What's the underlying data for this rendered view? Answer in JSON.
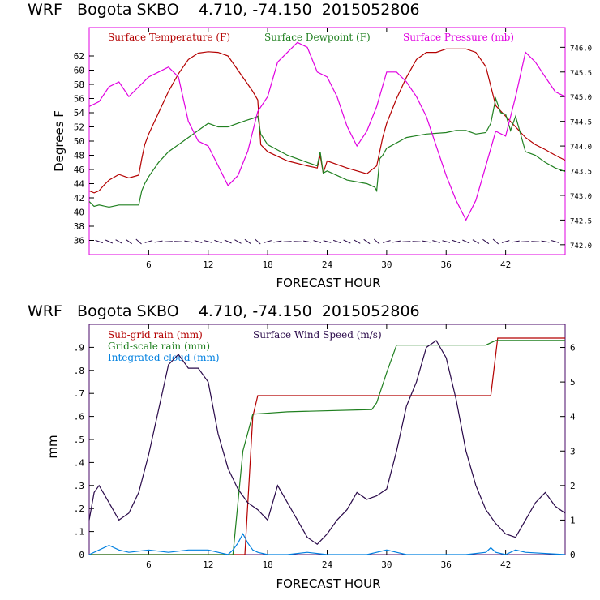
{
  "chart_data": [
    {
      "type": "line",
      "title": "WRF   Bogota SKBO    4.710, -74.150  2015052806",
      "xlabel": "FORECAST HOUR",
      "ylabel": "Degrees F",
      "xlim": [
        0,
        48
      ],
      "ylim": [
        34,
        66
      ],
      "y2lim": [
        741.8,
        746.4
      ],
      "x_ticks": [
        6,
        12,
        18,
        24,
        30,
        36,
        42
      ],
      "y_ticks": [
        36,
        38,
        40,
        42,
        44,
        46,
        48,
        50,
        52,
        54,
        56,
        58,
        60,
        62
      ],
      "y2_ticks": [
        "742.0",
        "742.5",
        "743.0",
        "743.5",
        "744.0",
        "744.5",
        "745.0",
        "745.5",
        "746.0"
      ],
      "y2_tick_values": [
        742.0,
        742.5,
        743.0,
        743.5,
        744.0,
        744.5,
        745.0,
        745.5,
        746.0
      ],
      "legend": [
        "Surface Temperature (F)",
        "Surface Dewpoint (F)",
        "Surface Pressure (mb)"
      ],
      "colors": {
        "temperature": "#b40000",
        "dewpoint": "#208020",
        "pressure": "#e000e0",
        "barbs": "#2a0a4a",
        "frame": "#e000e0"
      },
      "series": [
        {
          "name": "Surface Temperature (F)",
          "axis": "left",
          "x": [
            0,
            0.5,
            1,
            1.5,
            2,
            3,
            4,
            5,
            5.3,
            5.6,
            6,
            7,
            8,
            9,
            10,
            11,
            12,
            13,
            14,
            15,
            16,
            16.5,
            17,
            17.3,
            18,
            20,
            22,
            23,
            23.3,
            23.6,
            24,
            26,
            28,
            29,
            29.3,
            29.6,
            30,
            31,
            32,
            33,
            34,
            35,
            36,
            37,
            38,
            39,
            40,
            41,
            42,
            43,
            44,
            45,
            46,
            47,
            48
          ],
          "y": [
            43,
            42.7,
            43,
            43.8,
            44.5,
            45.3,
            44.8,
            45.2,
            47.5,
            49.5,
            51,
            54,
            57,
            59.5,
            61.5,
            62.4,
            62.6,
            62.5,
            62,
            60,
            58,
            57,
            55.8,
            49.5,
            48.5,
            47.2,
            46.5,
            46.2,
            48,
            45.5,
            47.2,
            46.2,
            45.4,
            46.5,
            48.5,
            50.5,
            52.5,
            56,
            59,
            61.5,
            62.5,
            62.5,
            63,
            63,
            63,
            62.5,
            60.5,
            55,
            53.5,
            52,
            50.5,
            49.5,
            48.8,
            48,
            47.3
          ]
        },
        {
          "name": "Surface Dewpoint (F)",
          "axis": "left",
          "x": [
            0,
            0.5,
            1,
            2,
            3,
            4,
            5,
            5.3,
            5.6,
            6,
            7,
            8,
            9,
            10,
            11,
            12,
            13,
            14,
            15,
            16,
            16.5,
            17,
            17.3,
            18,
            20,
            22,
            23,
            23.3,
            23.6,
            24,
            26,
            28,
            28.8,
            29,
            29.3,
            29.6,
            30,
            32,
            34,
            36,
            37,
            38,
            39,
            40,
            40.5,
            41,
            41.5,
            42,
            42.5,
            43,
            44,
            45,
            46,
            47,
            48
          ],
          "y": [
            41.5,
            40.8,
            41,
            40.7,
            41,
            41,
            41,
            43,
            44,
            45,
            47,
            48.5,
            49.5,
            50.5,
            51.5,
            52.5,
            52,
            52,
            52.5,
            53,
            53.2,
            53.5,
            51,
            49.5,
            48,
            47,
            46.5,
            48.5,
            45.5,
            45.8,
            44.5,
            44,
            43.5,
            43,
            47.5,
            48,
            49,
            50.5,
            51,
            51.2,
            51.5,
            51.5,
            51,
            51.2,
            52.5,
            56,
            54,
            53.8,
            51.5,
            53.5,
            48.5,
            48,
            47,
            46.2,
            45.7
          ]
        },
        {
          "name": "Surface Pressure (mb)",
          "axis": "right",
          "x": [
            0,
            1,
            2,
            3,
            4,
            5,
            6,
            7,
            8,
            9,
            10,
            11,
            12,
            13,
            14,
            15,
            16,
            17,
            18,
            19,
            20,
            21,
            22,
            23,
            24,
            25,
            26,
            27,
            28,
            29,
            30,
            31,
            32,
            33,
            34,
            35,
            36,
            37,
            38,
            39,
            40,
            41,
            42,
            43,
            44,
            45,
            46,
            47,
            48
          ],
          "y": [
            744.8,
            744.9,
            745.2,
            745.3,
            745.0,
            745.2,
            745.4,
            745.5,
            745.6,
            745.4,
            744.5,
            744.1,
            744.0,
            743.6,
            743.2,
            743.4,
            743.9,
            744.7,
            745.0,
            745.7,
            745.9,
            746.1,
            746.0,
            745.5,
            745.4,
            745.0,
            744.4,
            744.0,
            744.3,
            744.8,
            745.5,
            745.5,
            745.3,
            745.0,
            744.6,
            744.0,
            743.4,
            742.9,
            742.5,
            742.9,
            743.6,
            744.3,
            744.2,
            745.0,
            745.9,
            745.7,
            745.4,
            745.1,
            745.0
          ]
        }
      ]
    },
    {
      "type": "line",
      "title": "WRF   Bogota SKBO    4.710, -74.150  2015052806",
      "xlabel": "FORECAST HOUR",
      "ylabel": "mm",
      "xlim": [
        0,
        48
      ],
      "ylim": [
        0,
        1.0
      ],
      "y2lim": [
        0,
        6.67
      ],
      "x_ticks": [
        6,
        12,
        18,
        24,
        30,
        36,
        42
      ],
      "y_ticks": [
        "0",
        ".1",
        ".2",
        ".3",
        ".4",
        ".5",
        ".6",
        ".7",
        ".8",
        ".9"
      ],
      "y_tick_values": [
        0,
        0.1,
        0.2,
        0.3,
        0.4,
        0.5,
        0.6,
        0.7,
        0.8,
        0.9
      ],
      "y2_ticks": [
        "0",
        "1",
        "2",
        "3",
        "4",
        "5",
        "6"
      ],
      "y2_tick_values": [
        0,
        1,
        2,
        3,
        4,
        5,
        6
      ],
      "legend": [
        "Sub-grid rain (mm)",
        "Surface Wind Speed (m/s)",
        "Grid-scale rain (mm)",
        "Integrated cloud (mm)"
      ],
      "colors": {
        "subgrid": "#b40000",
        "gridscale": "#208020",
        "cloud": "#0080e0",
        "wind": "#2a0a4a",
        "frame": "#4a0a6a"
      },
      "series": [
        {
          "name": "Sub-grid rain (mm)",
          "axis": "left",
          "x": [
            0,
            15.7,
            16.5,
            17,
            40.5,
            41.2,
            48
          ],
          "y": [
            0,
            0,
            0.6,
            0.69,
            0.69,
            0.94,
            0.94
          ]
        },
        {
          "name": "Grid-scale rain (mm)",
          "axis": "left",
          "x": [
            0,
            14.5,
            15.5,
            16.5,
            20,
            28.5,
            29,
            30,
            31,
            40,
            41,
            48
          ],
          "y": [
            0,
            0,
            0.45,
            0.61,
            0.62,
            0.63,
            0.66,
            0.79,
            0.91,
            0.91,
            0.93,
            0.93
          ]
        },
        {
          "name": "Integrated cloud (mm)",
          "axis": "left",
          "x": [
            0,
            1,
            2,
            3,
            4,
            6,
            8,
            10,
            12,
            13,
            14,
            14.5,
            15,
            15.5,
            16,
            16.5,
            17,
            18,
            20,
            22,
            24,
            26,
            28,
            29,
            30,
            31,
            32,
            34,
            36,
            38,
            40,
            40.5,
            41,
            42,
            43,
            44,
            48
          ],
          "y": [
            0,
            0.02,
            0.04,
            0.02,
            0.01,
            0.02,
            0.01,
            0.02,
            0.02,
            0.01,
            0,
            0.02,
            0.05,
            0.09,
            0.05,
            0.02,
            0.01,
            0,
            0,
            0.01,
            0,
            0,
            0,
            0.01,
            0.02,
            0.01,
            0,
            0,
            0,
            0,
            0.01,
            0.03,
            0.01,
            0,
            0.02,
            0.01,
            0
          ]
        },
        {
          "name": "Surface Wind Speed (m/s)",
          "axis": "right",
          "x": [
            0,
            0.5,
            1,
            2,
            3,
            4,
            5,
            6,
            7,
            8,
            9,
            10,
            11,
            12,
            13,
            14,
            15,
            16,
            17,
            18,
            19,
            20,
            21,
            22,
            23,
            24,
            25,
            26,
            27,
            28,
            29,
            30,
            31,
            32,
            33,
            34,
            35,
            36,
            37,
            38,
            39,
            40,
            41,
            42,
            43,
            44,
            45,
            46,
            47,
            48
          ],
          "y": [
            1.0,
            1.8,
            2.0,
            1.5,
            1.0,
            1.2,
            1.8,
            2.9,
            4.2,
            5.5,
            5.8,
            5.4,
            5.4,
            5.0,
            3.5,
            2.5,
            1.9,
            1.5,
            1.3,
            1.0,
            2.0,
            1.5,
            1.0,
            0.5,
            0.3,
            0.6,
            1.0,
            1.3,
            1.8,
            1.6,
            1.7,
            1.9,
            3.0,
            4.3,
            5.0,
            6.0,
            6.2,
            5.7,
            4.5,
            3.0,
            2.0,
            1.3,
            0.9,
            0.6,
            0.5,
            1.0,
            1.5,
            1.8,
            1.4,
            1.2
          ]
        }
      ]
    }
  ]
}
